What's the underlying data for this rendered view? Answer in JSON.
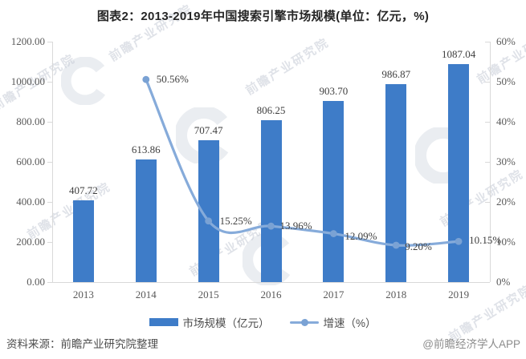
{
  "title": "图表2：2013-2019年中国搜索引擎市场规模(单位：亿元，%)",
  "footer": {
    "source": "资料来源：前瞻产业研究院整理",
    "credit": "@前瞻经济学人APP"
  },
  "watermark": {
    "text": "前瞻产业研究院"
  },
  "colors": {
    "bar": "#3e7cc8",
    "line": "#86abda",
    "marker": "#7aa2d4",
    "axis_line": "#d9d9d9",
    "axis_text": "#595959",
    "data_label": "#3f3f3f"
  },
  "chart_data": {
    "type": "bar",
    "subtype": "bar+line combo, dual axis",
    "categories": [
      "2013",
      "2014",
      "2015",
      "2016",
      "2017",
      "2018",
      "2019"
    ],
    "series": [
      {
        "name": "市场规模（亿元）",
        "type": "bar",
        "axis": "left",
        "values": [
          407.72,
          613.86,
          707.47,
          806.25,
          903.7,
          986.87,
          1087.04
        ],
        "labels": [
          "407.72",
          "613.86",
          "707.47",
          "806.25",
          "903.70",
          "986.87",
          "1087.04"
        ]
      },
      {
        "name": "增速（%）",
        "type": "line",
        "axis": "right",
        "start_category_index": 1,
        "values": [
          50.56,
          15.25,
          13.96,
          12.09,
          9.2,
          10.15
        ],
        "labels": [
          "50.56%",
          "15.25%",
          "13.96%",
          "12.09%",
          "9.20%",
          "10.15%"
        ]
      }
    ],
    "left_axis": {
      "min": 0,
      "max": 1200,
      "ticks": [
        "0.00",
        "200.00",
        "400.00",
        "600.00",
        "800.00",
        "1000.00",
        "1200.00"
      ]
    },
    "right_axis": {
      "min": 0,
      "max": 60,
      "ticks": [
        "0%",
        "10%",
        "20%",
        "30%",
        "40%",
        "50%",
        "60%"
      ]
    },
    "grid": false,
    "legend_position": "bottom"
  }
}
